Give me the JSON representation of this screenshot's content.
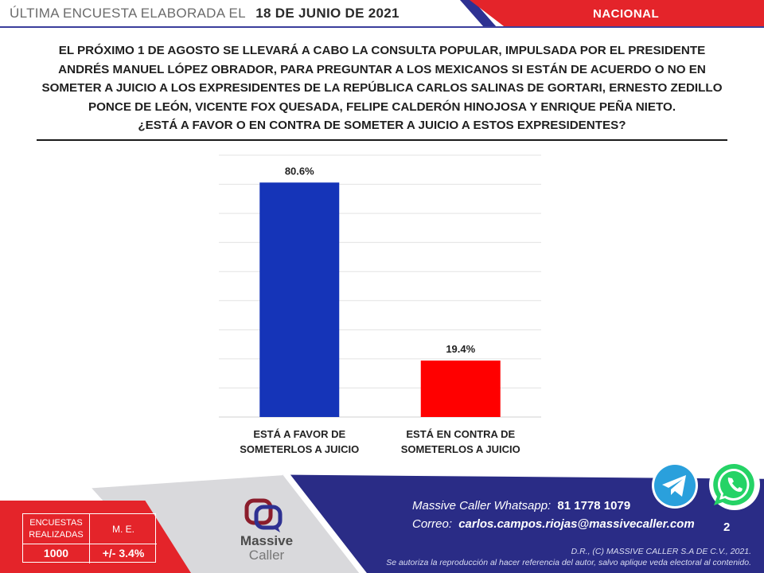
{
  "header": {
    "title": "ÚLTIMA ENCUESTA ELABORADA EL",
    "date": "18 DE JUNIO DE 2021",
    "scope": "NACIONAL"
  },
  "question": {
    "lines": [
      "EL PRÓXIMO 1 DE AGOSTO SE LLEVARÁ A CABO LA CONSULTA POPULAR, IMPULSADA POR EL PRESIDENTE",
      "ANDRÉS MANUEL LÓPEZ OBRADOR, PARA PREGUNTAR A LOS MEXICANOS SI ESTÁN DE ACUERDO O NO EN",
      "SOMETER A JUICIO A LOS EXPRESIDENTES DE LA REPÚBLICA CARLOS SALINAS DE GORTARI, ERNESTO ZEDILLO",
      "PONCE DE LEÓN, VICENTE FOX QUESADA, FELIPE CALDERÓN HINOJOSA Y ENRIQUE PEÑA NIETO.",
      "¿ESTÁ A FAVOR O EN CONTRA DE SOMETER A JUICIO A ESTOS EXPRESIDENTES?"
    ]
  },
  "chart_data": {
    "type": "bar",
    "categories": [
      [
        "ESTÁ A FAVOR DE",
        "SOMETERLOS A JUICIO"
      ],
      [
        "ESTÁ EN CONTRA DE",
        "SOMETERLOS A JUICIO"
      ]
    ],
    "values": [
      80.6,
      19.4
    ],
    "value_labels": [
      "80.6%",
      "19.4%"
    ],
    "colors": [
      "#1534b8",
      "#ff0000"
    ],
    "ylim": [
      0,
      90
    ],
    "grid": true,
    "legend": "none"
  },
  "stats": {
    "surveys_label_1": "ENCUESTAS",
    "surveys_label_2": "REALIZADAS",
    "margin_label": "M. E.",
    "surveys_value": "1000",
    "margin_value": "+/- 3.4%"
  },
  "logo": {
    "line1": "Massive",
    "line2": "Caller"
  },
  "contact": {
    "whatsapp_label": "Massive Caller Whatsapp:",
    "whatsapp_value": "81 1778 1079",
    "email_label": "Correo:",
    "email_value": "carlos.campos.riojas@massivecaller.com"
  },
  "page_number": "2",
  "legal": {
    "line1": "D.R., (C) MASSIVE CALLER S.A DE C.V., 2021.",
    "line2": "Se autoriza la reproducción al hacer referencia del autor, salvo aplique veda electoral al contenido."
  },
  "icons": {
    "telegram": "telegram-icon",
    "whatsapp": "whatsapp-icon",
    "telegram_color": "#2aa0dc",
    "whatsapp_color": "#25d366"
  }
}
